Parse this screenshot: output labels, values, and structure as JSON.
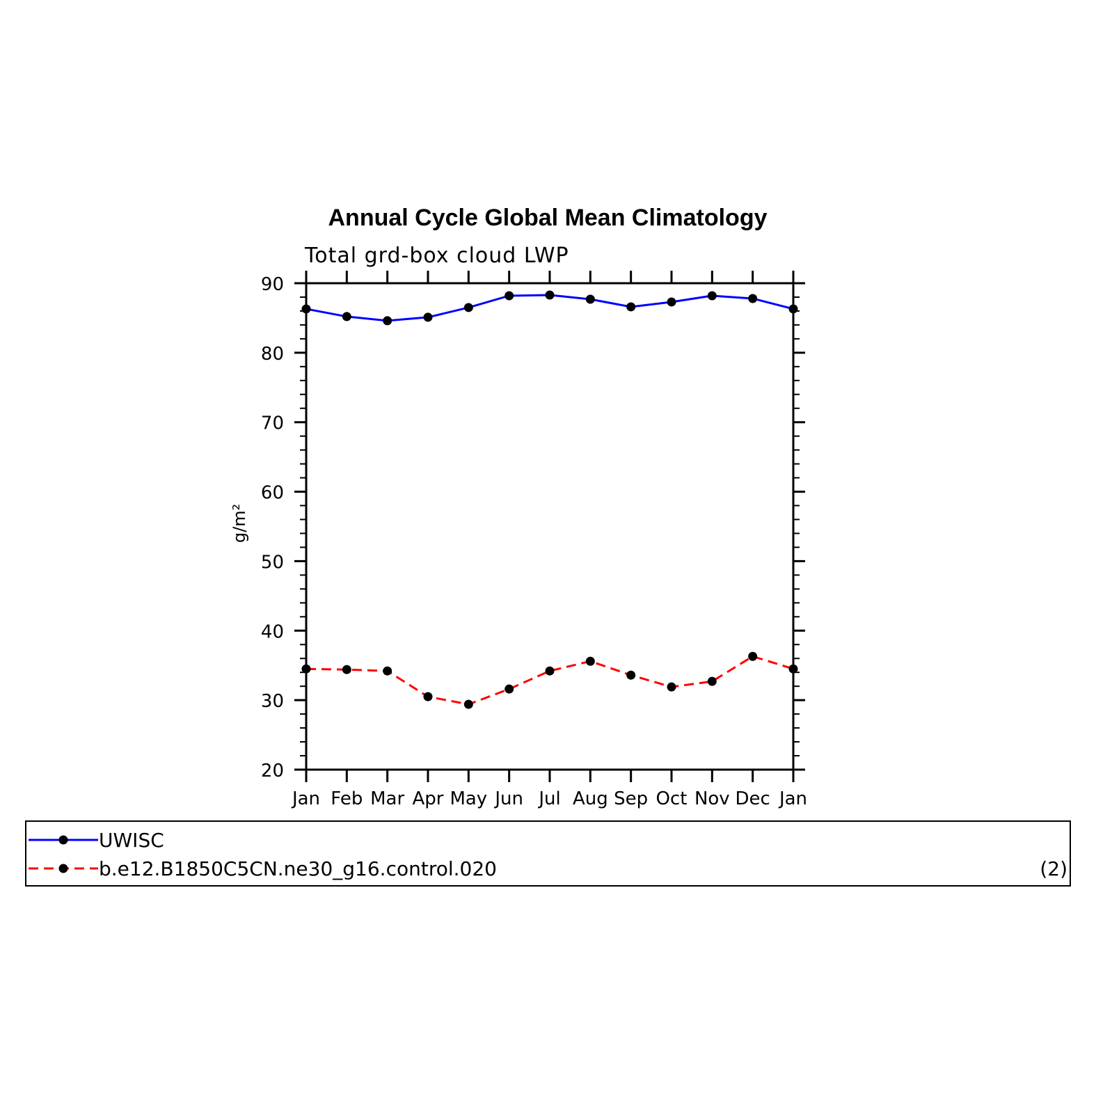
{
  "chart_data": {
    "type": "line",
    "title": "Annual Cycle Global Mean Climatology",
    "subtitle": "Total grd-box cloud LWP",
    "xlabel": "",
    "ylabel": "g/m²",
    "ylim": [
      20,
      90
    ],
    "yticks": [
      20,
      30,
      40,
      50,
      60,
      70,
      80,
      90
    ],
    "categories": [
      "Jan",
      "Feb",
      "Mar",
      "Apr",
      "May",
      "Jun",
      "Jul",
      "Aug",
      "Sep",
      "Oct",
      "Nov",
      "Dec",
      "Jan"
    ],
    "grid": false,
    "series": [
      {
        "name": "UWISC",
        "color": "#0000ff",
        "dash": "solid",
        "values": [
          86.3,
          85.2,
          84.6,
          85.1,
          86.5,
          88.2,
          88.3,
          87.7,
          86.6,
          87.3,
          88.2,
          87.8,
          86.3
        ]
      },
      {
        "name": "b.e12.B1850C5CN.ne30_g16.control.020",
        "color": "#ff0000",
        "dash": "dashed",
        "values": [
          34.5,
          34.4,
          34.2,
          30.5,
          29.4,
          31.6,
          34.2,
          35.6,
          33.6,
          31.9,
          32.7,
          36.3,
          34.5
        ]
      }
    ],
    "legend_position": "bottom",
    "legend_note": "(2)"
  }
}
